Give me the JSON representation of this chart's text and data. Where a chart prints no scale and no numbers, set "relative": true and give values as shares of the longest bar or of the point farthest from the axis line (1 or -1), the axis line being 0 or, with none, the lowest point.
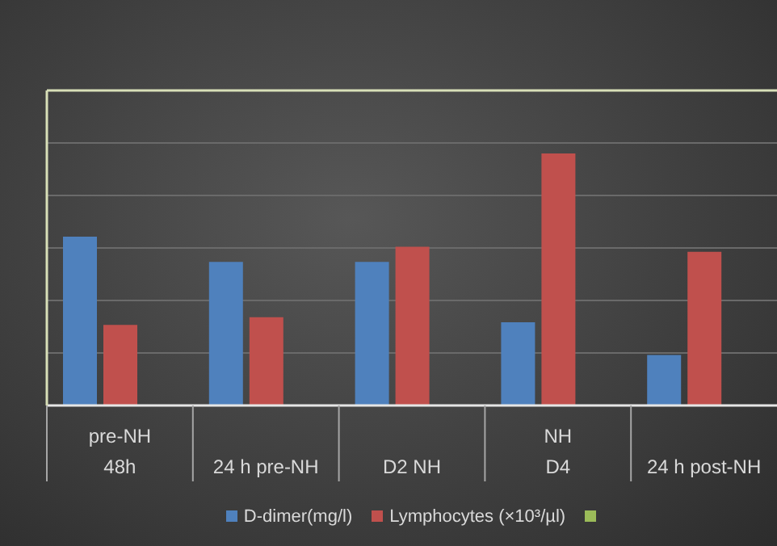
{
  "chart_data": {
    "type": "bar",
    "relative": true,
    "categories": [
      "pre-NH\n48h",
      "24 h pre-NH",
      "D2 NH",
      "NH\nD4",
      "24 h post-NH"
    ],
    "series": [
      {
        "name": "D-dimer(mg/l)",
        "color": "#4f81bd",
        "values": [
          0.67,
          0.57,
          0.57,
          0.33,
          0.2
        ]
      },
      {
        "name": "Lymphocytes (×10³/µl)",
        "color": "#c0504d",
        "values": [
          0.32,
          0.35,
          0.63,
          1,
          0.61
        ]
      },
      {
        "color": "#9bbb59",
        "values": [
          null,
          null,
          null,
          null,
          null
        ]
      }
    ],
    "grid": "y",
    "legend": "bottom"
  }
}
